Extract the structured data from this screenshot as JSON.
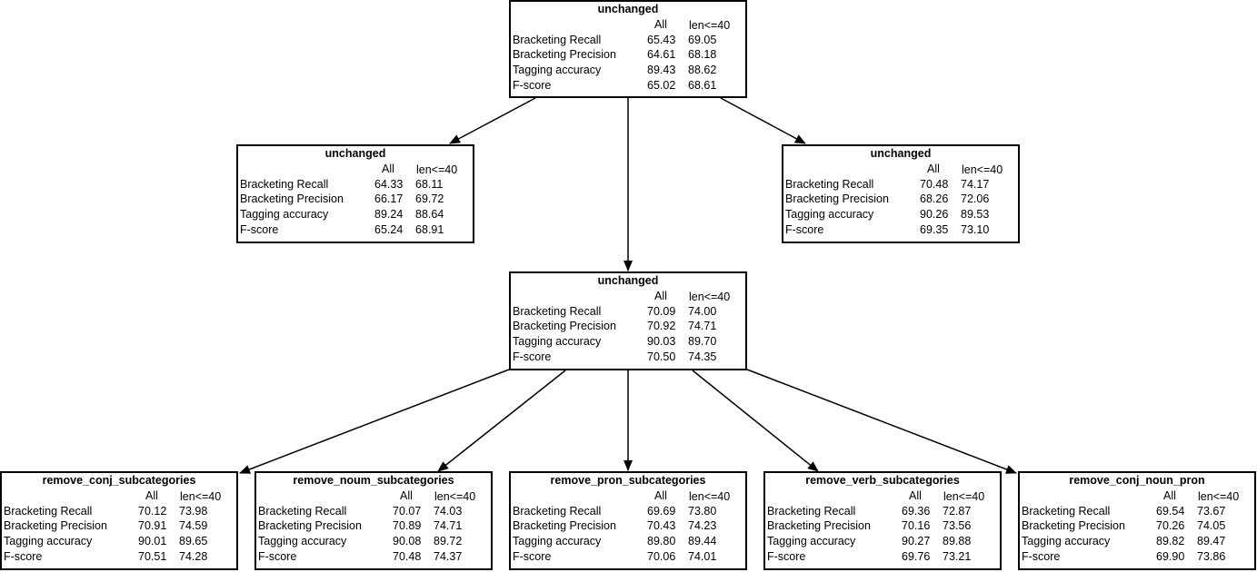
{
  "columns": {
    "all": "All",
    "short": "len<=40"
  },
  "metric_labels": [
    "Bracketing Recall",
    "Bracketing Precision",
    "Tagging accuracy",
    "F-score"
  ],
  "nodes": [
    {
      "title": "unchanged",
      "values": [
        [
          "65.43",
          "69.05"
        ],
        [
          "64.61",
          "68.18"
        ],
        [
          "89.43",
          "88.62"
        ],
        [
          "65.02",
          "68.61"
        ]
      ]
    },
    {
      "title": "unchanged",
      "values": [
        [
          "64.33",
          "68.11"
        ],
        [
          "66.17",
          "69.72"
        ],
        [
          "89.24",
          "88.64"
        ],
        [
          "65.24",
          "68.91"
        ]
      ]
    },
    {
      "title": "unchanged",
      "values": [
        [
          "70.48",
          "74.17"
        ],
        [
          "68.26",
          "72.06"
        ],
        [
          "90.26",
          "89.53"
        ],
        [
          "69.35",
          "73.10"
        ]
      ]
    },
    {
      "title": "unchanged",
      "values": [
        [
          "70.09",
          "74.00"
        ],
        [
          "70.92",
          "74.71"
        ],
        [
          "90.03",
          "89.70"
        ],
        [
          "70.50",
          "74.35"
        ]
      ]
    },
    {
      "title": "remove_conj_subcategories",
      "values": [
        [
          "70.12",
          "73.98"
        ],
        [
          "70.91",
          "74.59"
        ],
        [
          "90.01",
          "89.65"
        ],
        [
          "70.51",
          "74.28"
        ]
      ]
    },
    {
      "title": "remove_noum_subcategories",
      "values": [
        [
          "70.07",
          "74.03"
        ],
        [
          "70.89",
          "74.71"
        ],
        [
          "90.08",
          "89.72"
        ],
        [
          "70.48",
          "74.37"
        ]
      ]
    },
    {
      "title": "remove_pron_subcategories",
      "values": [
        [
          "69.69",
          "73.80"
        ],
        [
          "70.43",
          "74.23"
        ],
        [
          "89.80",
          "89.44"
        ],
        [
          "70.06",
          "74.01"
        ]
      ]
    },
    {
      "title": "remove_verb_subcategories",
      "values": [
        [
          "69.36",
          "72.87"
        ],
        [
          "70.16",
          "73.56"
        ],
        [
          "90.27",
          "89.88"
        ],
        [
          "69.76",
          "73.21"
        ]
      ]
    },
    {
      "title": "remove_conj_noun_pron",
      "values": [
        [
          "69.54",
          "73.67"
        ],
        [
          "70.26",
          "74.05"
        ],
        [
          "89.82",
          "89.47"
        ],
        [
          "69.90",
          "73.86"
        ]
      ]
    }
  ],
  "edges": [
    [
      0,
      1
    ],
    [
      0,
      2
    ],
    [
      0,
      3
    ],
    [
      3,
      4
    ],
    [
      3,
      5
    ],
    [
      3,
      6
    ],
    [
      3,
      7
    ],
    [
      3,
      8
    ]
  ]
}
